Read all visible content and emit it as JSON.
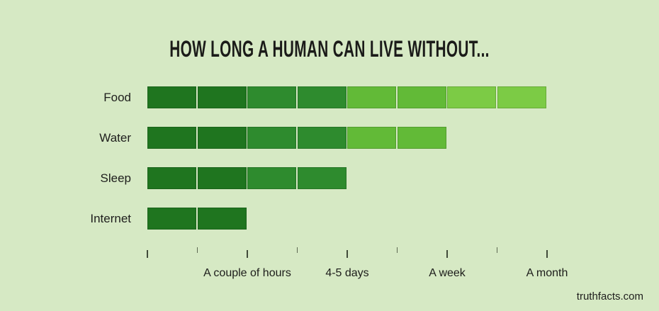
{
  "chart_data": {
    "type": "bar",
    "orientation": "horizontal",
    "title": "HOW LONG A HUMAN CAN LIVE WITHOUT...",
    "categories": [
      "Food",
      "Water",
      "Sleep",
      "Internet"
    ],
    "values": [
      8,
      6,
      4,
      2
    ],
    "value_unit": "axis segments (2 segments per labeled axis interval)",
    "value_labels": [
      "A month",
      "A week",
      "4-5 days",
      "A couple of hours"
    ],
    "x_axis": {
      "range_segments": [
        0,
        8
      ],
      "major_ticks_at": [
        0,
        2,
        4,
        6,
        8
      ],
      "minor_ticks_at": [
        1,
        3,
        5,
        7
      ],
      "tick_labels": [
        {
          "position": 2,
          "label": "A couple of hours"
        },
        {
          "position": 4,
          "label": "4-5 days"
        },
        {
          "position": 6,
          "label": "A week"
        },
        {
          "position": 8,
          "label": "A month"
        }
      ]
    },
    "grid": false,
    "legend": false,
    "styles": {
      "background": "#d6e9c4",
      "segment_shades_dark_to_light": [
        "#1f751f",
        "#2e8b2e",
        "#62ba37",
        "#7ccb45"
      ],
      "title_color": "#1b1b19",
      "label_color": "#1e1e1c",
      "tick_color": "#414b3a"
    }
  },
  "footer": {
    "source": "truthfacts.com"
  }
}
